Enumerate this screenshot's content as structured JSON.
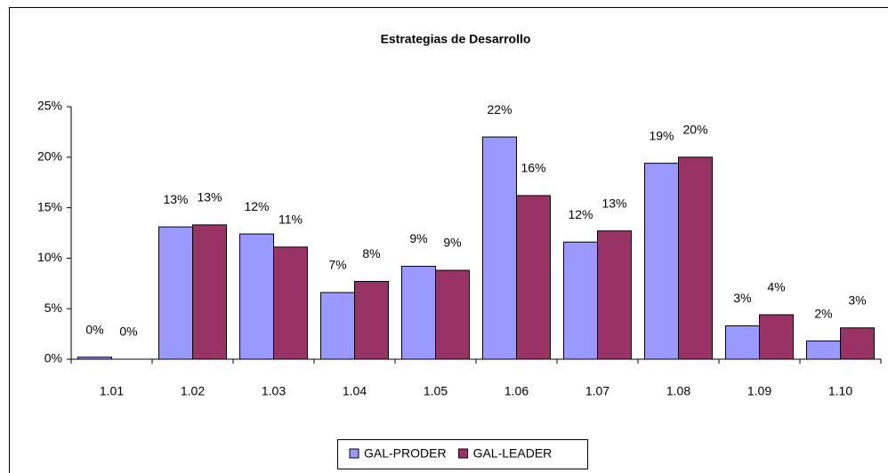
{
  "chart_data": {
    "type": "bar",
    "title": "Estrategias de Desarrollo",
    "categories": [
      "1.01",
      "1.02",
      "1.03",
      "1.04",
      "1.05",
      "1.06",
      "1.07",
      "1.08",
      "1.09",
      "1.10"
    ],
    "series": [
      {
        "name": "GAL-PRODER",
        "color": "#9999ff",
        "values": [
          0.2,
          13.1,
          12.4,
          6.6,
          9.2,
          22.0,
          11.6,
          19.4,
          3.3,
          1.8
        ],
        "value_labels": [
          "0%",
          "13%",
          "12%",
          "7%",
          "9%",
          "22%",
          "12%",
          "19%",
          "3%",
          "2%"
        ]
      },
      {
        "name": "GAL-LEADER",
        "color": "#993366",
        "values": [
          0,
          13.3,
          11.1,
          7.7,
          8.8,
          16.2,
          12.7,
          20.0,
          4.4,
          3.1
        ],
        "value_labels": [
          "0%",
          "13%",
          "11%",
          "8%",
          "9%",
          "16%",
          "13%",
          "20%",
          "4%",
          "3%"
        ]
      }
    ],
    "ylim": [
      0,
      25
    ],
    "yticks": [
      {
        "value": 0,
        "label": "0%"
      },
      {
        "value": 5,
        "label": "5%"
      },
      {
        "value": 10,
        "label": "10%"
      },
      {
        "value": 15,
        "label": "15%"
      },
      {
        "value": 20,
        "label": "20%"
      },
      {
        "value": 25,
        "label": "25%"
      }
    ],
    "grid": false,
    "legend": "bottom"
  }
}
